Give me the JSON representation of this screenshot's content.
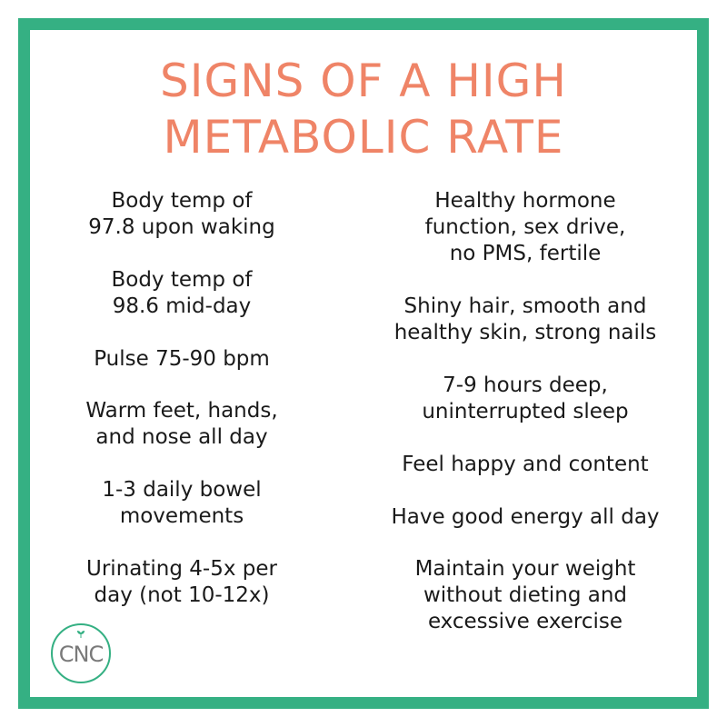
{
  "title": {
    "line1": "SIGNS OF A HIGH",
    "line2": "METABOLIC RATE"
  },
  "left_items": [
    {
      "lines": [
        "Body temp of",
        "97.8 upon waking"
      ]
    },
    {
      "lines": [
        "Body temp of",
        "98.6 mid-day"
      ]
    },
    {
      "lines": [
        "Pulse 75-90 bpm"
      ]
    },
    {
      "lines": [
        "Warm feet, hands,",
        "and nose all day"
      ]
    },
    {
      "lines": [
        "1-3 daily bowel",
        "movements"
      ]
    },
    {
      "lines": [
        "Urinating 4-5x per",
        "day (not 10-12x)"
      ]
    }
  ],
  "right_items": [
    {
      "lines": [
        "Healthy hormone",
        "function, sex drive,",
        "no PMS, fertile"
      ]
    },
    {
      "lines": [
        "Shiny hair, smooth and",
        "healthy skin, strong nails"
      ]
    },
    {
      "lines": [
        "7-9 hours deep,",
        "uninterrupted sleep"
      ]
    },
    {
      "lines": [
        "Feel happy and content"
      ]
    },
    {
      "lines": [
        "Have good energy all day"
      ]
    },
    {
      "lines": [
        "Maintain your weight",
        "without dieting and",
        "excessive exercise"
      ]
    }
  ],
  "logo": {
    "text": "CNC",
    "icon": "leaf-icon"
  },
  "colors": {
    "border": "#35b083",
    "title": "#ef8467",
    "body_text": "#1a1a1a",
    "logo_text": "#7a7a7a"
  }
}
